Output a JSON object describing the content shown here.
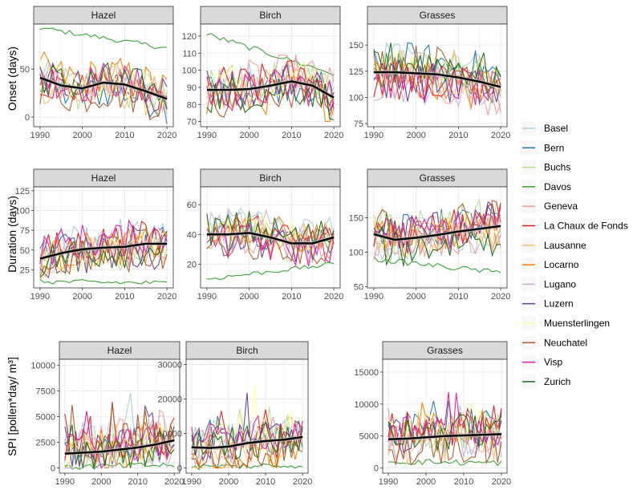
{
  "figure": {
    "stations": [
      "Basel",
      "Bern",
      "Buchs",
      "Davos",
      "Geneva",
      "La Chaux de Fonds",
      "Lausanne",
      "Locarno",
      "Lugano",
      "Luzern",
      "Muensterlingen",
      "Neuchatel",
      "Visp",
      "Zurich"
    ],
    "colors": [
      "#a6cee3",
      "#1f78b4",
      "#b2df8a",
      "#33a02c",
      "#fb9a99",
      "#e31a1c",
      "#fdbf6f",
      "#ff7f00",
      "#cab2d6",
      "#6a3d9a",
      "#ffff99",
      "#b15928",
      "#e8199c",
      "#1b6b1b"
    ],
    "trend_color": "#000000",
    "facets": [
      "Hazel",
      "Birch",
      "Grasses"
    ]
  },
  "chart_data": [
    {
      "type": "line",
      "row": "Onset (days)",
      "panel": "Hazel",
      "title": "Hazel",
      "ylabel": "Onset (days)",
      "xlim": [
        1988.5,
        2021.5
      ],
      "ylim": [
        -10,
        97
      ],
      "xticks": [
        1990,
        2000,
        2010,
        2020
      ],
      "yticks": [
        0,
        50
      ],
      "trend": {
        "x": [
          1990,
          1995,
          2000,
          2005,
          2010,
          2015,
          2020
        ],
        "y": [
          41,
          33,
          30,
          36,
          34,
          27,
          19
        ]
      },
      "series_range": {
        "Davos": [
          93,
          72
        ],
        "others": [
          -8,
          78
        ]
      }
    },
    {
      "type": "line",
      "row": "Onset (days)",
      "panel": "Birch",
      "title": "Birch",
      "xlim": [
        1988.5,
        2021.5
      ],
      "ylim": [
        67,
        127
      ],
      "xticks": [
        1990,
        2000,
        2010,
        2020
      ],
      "yticks": [
        70,
        80,
        90,
        100,
        110,
        120
      ],
      "trend": {
        "x": [
          1990,
          1995,
          2000,
          2005,
          2010,
          2015,
          2020
        ],
        "y": [
          88.5,
          88.5,
          89,
          91,
          93.5,
          91,
          84
        ]
      },
      "series_range": {
        "Davos": [
          121,
          98
        ],
        "others": [
          70,
          122
        ]
      }
    },
    {
      "type": "line",
      "row": "Onset (days)",
      "panel": "Grasses",
      "title": "Grasses",
      "xlim": [
        1988.5,
        2021.5
      ],
      "ylim": [
        72,
        170
      ],
      "xticks": [
        1990,
        2000,
        2010,
        2020
      ],
      "yticks": [
        75,
        100,
        125,
        150
      ],
      "trend": {
        "x": [
          1990,
          1995,
          2000,
          2005,
          2010,
          2015,
          2020
        ],
        "y": [
          124,
          124,
          123,
          122,
          119,
          115,
          110
        ]
      },
      "series_range": {
        "others": [
          76,
          165
        ]
      }
    },
    {
      "type": "line",
      "row": "Duration (days)",
      "panel": "Hazel",
      "title": "Hazel",
      "ylabel": "Duration (days)",
      "xlim": [
        1988.5,
        2021.5
      ],
      "ylim": [
        2,
        130
      ],
      "xticks": [
        1990,
        2000,
        2010,
        2020
      ],
      "yticks": [
        25,
        50,
        75,
        100,
        125
      ],
      "trend": {
        "x": [
          1990,
          1995,
          2000,
          2005,
          2010,
          2015,
          2020
        ],
        "y": [
          39,
          46,
          51,
          53,
          54,
          58,
          58
        ]
      },
      "series_range": {
        "Davos": [
          10,
          8
        ],
        "others": [
          15,
          120
        ]
      }
    },
    {
      "type": "line",
      "row": "Duration (days)",
      "panel": "Birch",
      "title": "Birch",
      "xlim": [
        1988.5,
        2021.5
      ],
      "ylim": [
        4,
        72
      ],
      "xticks": [
        1990,
        2000,
        2010,
        2020
      ],
      "yticks": [
        20,
        40,
        60
      ],
      "trend": {
        "x": [
          1990,
          1995,
          2000,
          2005,
          2010,
          2015,
          2020
        ],
        "y": [
          40,
          40,
          41,
          38,
          34,
          34,
          38
        ]
      },
      "series_range": {
        "Davos": [
          10,
          20
        ],
        "others": [
          15,
          68
        ]
      }
    },
    {
      "type": "line",
      "row": "Duration (days)",
      "panel": "Grasses",
      "title": "Grasses",
      "xlim": [
        1988.5,
        2021.5
      ],
      "ylim": [
        48,
        195
      ],
      "xticks": [
        1990,
        2000,
        2010,
        2020
      ],
      "yticks": [
        50,
        100,
        150
      ],
      "trend": {
        "x": [
          1990,
          1995,
          2000,
          2005,
          2010,
          2015,
          2020
        ],
        "y": [
          126,
          118,
          121,
          125,
          130,
          134,
          138
        ]
      },
      "series_range": {
        "Davos": [
          90,
          70
        ],
        "others": [
          60,
          190
        ]
      }
    },
    {
      "type": "line",
      "row": "SPI",
      "panel": "Hazel",
      "title": "Hazel",
      "ylabel": "SPI [pollen*day/ m³]",
      "xlim": [
        1988.5,
        2021.5
      ],
      "ylim": [
        -500,
        10600
      ],
      "xticks": [
        1990,
        2000,
        2010,
        2020
      ],
      "yticks": [
        0,
        2500,
        5000,
        7500,
        10000
      ],
      "trend": {
        "x": [
          1990,
          1995,
          2000,
          2005,
          2010,
          2015,
          2020
        ],
        "y": [
          1400,
          1500,
          1600,
          1800,
          2000,
          2300,
          2700
        ]
      },
      "series_range": {
        "Davos": [
          100,
          300
        ],
        "others": [
          0,
          10200
        ]
      }
    },
    {
      "type": "line",
      "row": "SPI",
      "panel": "Birch",
      "title": "Birch",
      "xlim": [
        1988.5,
        2021.5
      ],
      "ylim": [
        -1500,
        31500
      ],
      "xticks": [
        1990,
        2000,
        2010,
        2020
      ],
      "yticks": [
        0,
        10000,
        20000,
        30000
      ],
      "trend": {
        "x": [
          1990,
          1995,
          2000,
          2005,
          2010,
          2015,
          2020
        ],
        "y": [
          6000,
          5800,
          6200,
          7200,
          7800,
          8200,
          9000
        ]
      },
      "series_range": {
        "Davos": [
          300,
          800
        ],
        "others": [
          0,
          29000
        ]
      }
    },
    {
      "type": "line",
      "row": "SPI",
      "panel": "Grasses",
      "title": "Grasses",
      "xlim": [
        1988.5,
        2021.5
      ],
      "ylim": [
        -800,
        17000
      ],
      "xticks": [
        1990,
        2000,
        2010,
        2020
      ],
      "yticks": [
        0,
        5000,
        10000,
        15000
      ],
      "trend": {
        "x": [
          1990,
          1995,
          2000,
          2005,
          2010,
          2015,
          2020
        ],
        "y": [
          4500,
          4600,
          4800,
          5000,
          5100,
          5200,
          5300
        ]
      },
      "series_range": {
        "Davos": [
          1000,
          800
        ],
        "others": [
          500,
          16000
        ]
      }
    }
  ]
}
